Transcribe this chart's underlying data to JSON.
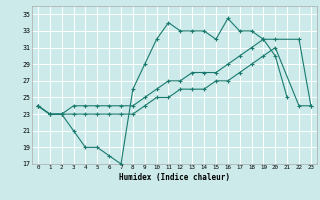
{
  "xlabel": "Humidex (Indice chaleur)",
  "background_color": "#cceaea",
  "grid_color": "#ffffff",
  "line_color": "#1a7a6e",
  "xlim": [
    -0.5,
    23.5
  ],
  "ylim": [
    17,
    36
  ],
  "xticks": [
    0,
    1,
    2,
    3,
    4,
    5,
    6,
    7,
    8,
    9,
    10,
    11,
    12,
    13,
    14,
    15,
    16,
    17,
    18,
    19,
    20,
    21,
    22,
    23
  ],
  "yticks": [
    17,
    19,
    21,
    23,
    25,
    27,
    29,
    31,
    33,
    35
  ],
  "line1_x": [
    0,
    1,
    2,
    3,
    4,
    5,
    6,
    7,
    8,
    9,
    10,
    11,
    12,
    13,
    14,
    15,
    16,
    17,
    18,
    19,
    20,
    21
  ],
  "line1_y": [
    24,
    23,
    23,
    21,
    19,
    19,
    18,
    17,
    26,
    29,
    32,
    34,
    33,
    33,
    33,
    32,
    34.5,
    33,
    33,
    32,
    30,
    25
  ],
  "line2_x": [
    0,
    1,
    2,
    3,
    4,
    5,
    6,
    7,
    8,
    9,
    10,
    11,
    12,
    13,
    14,
    15,
    16,
    17,
    18,
    19,
    20,
    22,
    23
  ],
  "line2_y": [
    24,
    23,
    23,
    24,
    24,
    24,
    24,
    24,
    24,
    25,
    26,
    27,
    27,
    28,
    28,
    28,
    29,
    30,
    31,
    32,
    32,
    32,
    24
  ],
  "line3_x": [
    0,
    1,
    2,
    3,
    4,
    5,
    6,
    7,
    8,
    9,
    10,
    11,
    12,
    13,
    14,
    15,
    16,
    17,
    18,
    19,
    20,
    22,
    23
  ],
  "line3_y": [
    24,
    23,
    23,
    23,
    23,
    23,
    23,
    23,
    23,
    24,
    25,
    25,
    26,
    26,
    26,
    27,
    27,
    28,
    29,
    30,
    31,
    24,
    24
  ]
}
